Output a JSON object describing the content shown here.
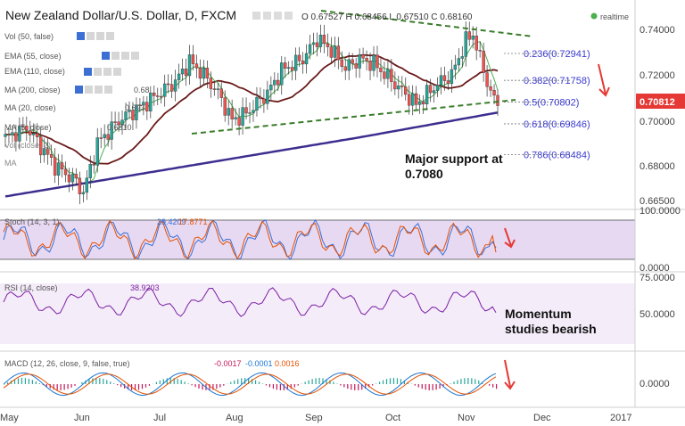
{
  "header": {
    "symbol": "New Zealand Dollar/U.S. Dollar, D, FXCM",
    "ohlc": "O 0.67527 H 0.68456 L 0.67510 C 0.68160",
    "realtime": "realtime"
  },
  "legends": {
    "vol": "Vol (50, false)",
    "ema55": "EMA (55, close)",
    "ema110": "EMA (110, close)",
    "ma200": "MA (200, close)",
    "ma20": "MA (20, close)",
    "ma5": "MA (5, close)",
    "line3": "Vol (close, 2)",
    "line4": "MA",
    "stoch": "Stoch (14, 3, 1)",
    "stoch_k": "29.4209",
    "stoch_d": "17.8771",
    "rsi": "RSI (14, close)",
    "rsi_val": "38.9203",
    "macd": "MACD (12, 26, close, 9, false, true)",
    "macd_v1": "-0.0017",
    "macd_v2": "-0.0001",
    "macd_v3": "0.0016"
  },
  "overlay_values": {
    "v1": "0.68",
    "v2": "0.693",
    "v3": "0.6810"
  },
  "fib": [
    {
      "label": "0.236(0.72941)",
      "price": 0.72941
    },
    {
      "label": "0.382(0.71758)",
      "price": 0.71758
    },
    {
      "label": "0.5(0.70802)",
      "price": 0.70802
    },
    {
      "label": "0.618(0.69846)",
      "price": 0.69846
    },
    {
      "label": "0.786(0.68484)",
      "price": 0.68484
    }
  ],
  "annotations": {
    "support": [
      "Major support at",
      "0.7080"
    ],
    "momentum": [
      "Momentum",
      "studies bearish"
    ]
  },
  "price_axis": [
    "0.74000",
    "0.72000",
    "0.70812",
    "0.70000",
    "0.68000",
    "0.66500"
  ],
  "current_price": "0.70812",
  "stoch_axis": [
    "100.0000",
    "0.0000"
  ],
  "rsi_axis": [
    "75.0000",
    "50.0000"
  ],
  "macd_axis": [
    "0.0000"
  ],
  "x_axis": [
    "May",
    "Jun",
    "Jul",
    "Aug",
    "Sep",
    "Oct",
    "Nov",
    "Dec",
    "2017"
  ],
  "colors": {
    "up": "#26a69a",
    "down": "#ef5350",
    "ma200": "#3d2e8f",
    "ma55": "#6b1a1a",
    "fib": "#3b3bcf",
    "trend": "#3a7d2a",
    "arrow": "#e53935",
    "pane": "#e8d9f3"
  },
  "chart_data": {
    "type": "candlestick",
    "x": [
      "May",
      "Jun",
      "Jul",
      "Aug",
      "Sep",
      "Oct",
      "Nov",
      "Dec"
    ],
    "close_approx": [
      0.69,
      0.672,
      0.7,
      0.722,
      0.735,
      0.712,
      0.728,
      0.7081
    ],
    "ylim": [
      0.665,
      0.745
    ],
    "last_close": 0.70812,
    "fib_levels": [
      0.72941,
      0.71758,
      0.70802,
      0.69846,
      0.68484
    ],
    "stoch": {
      "k": 29.4209,
      "d": 17.8771,
      "range": [
        0,
        100
      ]
    },
    "rsi": {
      "value": 38.9203,
      "range": [
        0,
        75
      ]
    },
    "macd": {
      "macd": -0.0017,
      "signal": -0.0001,
      "hist": 0.0016
    }
  }
}
